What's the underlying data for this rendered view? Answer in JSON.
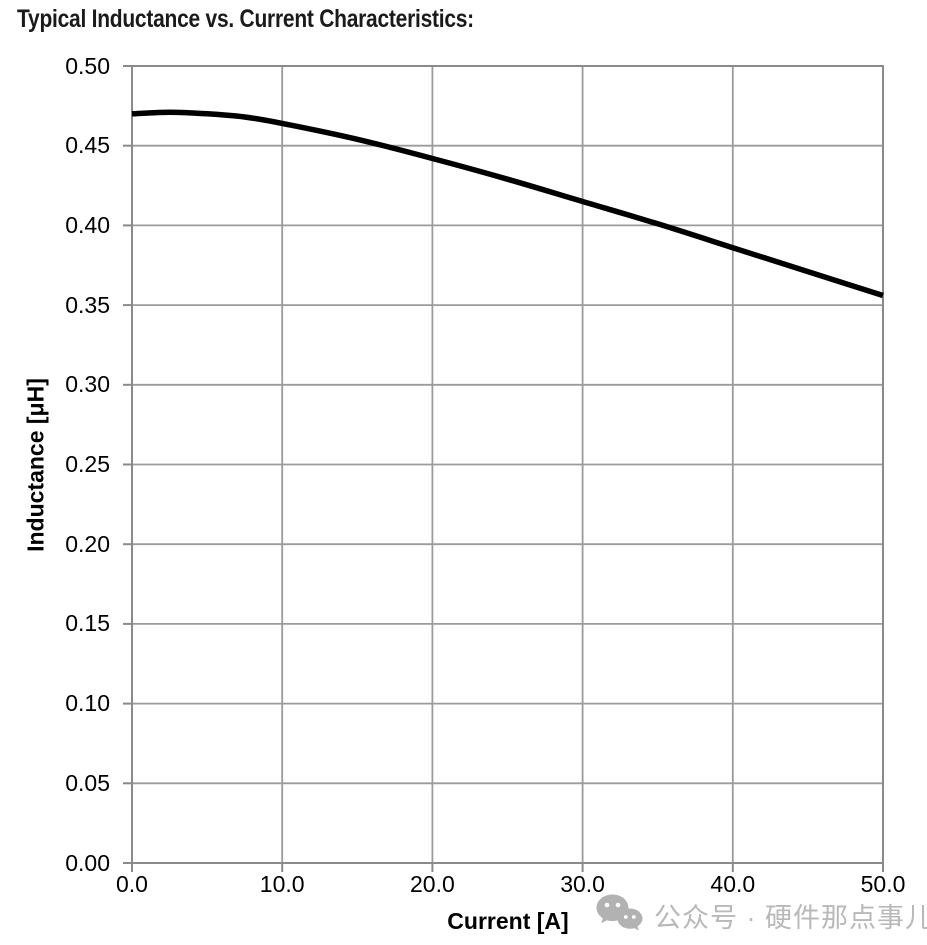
{
  "chart_data": {
    "type": "line",
    "title": "Typical Inductance vs. Current Characteristics:",
    "xlabel": "Current [A]",
    "ylabel": "Inductance [μH]",
    "xlim": [
      0,
      50
    ],
    "ylim": [
      0,
      0.5
    ],
    "x_ticks": [
      "0.0",
      "10.0",
      "20.0",
      "30.0",
      "40.0",
      "50.0"
    ],
    "y_ticks": [
      "0.00",
      "0.05",
      "0.10",
      "0.15",
      "0.20",
      "0.25",
      "0.30",
      "0.35",
      "0.40",
      "0.45",
      "0.50"
    ],
    "grid": true,
    "legend_position": "none",
    "series": [
      {
        "name": "Inductance",
        "color": "#000000",
        "x": [
          0,
          2.5,
          5,
          7.5,
          10,
          15,
          20,
          25,
          30,
          35,
          40,
          45,
          50
        ],
        "y": [
          0.47,
          0.471,
          0.47,
          0.468,
          0.464,
          0.454,
          0.442,
          0.429,
          0.415,
          0.401,
          0.386,
          0.371,
          0.356
        ]
      }
    ]
  },
  "watermark": {
    "text": "公众号 · 硬件那点事儿",
    "icon": "wechat-icon",
    "color": "#b9b9b9"
  },
  "colors": {
    "curve": "#000000",
    "gridline": "#9b9b9b",
    "axis_border": "#8a8a8a",
    "text": "#000000",
    "background": "#ffffff"
  }
}
